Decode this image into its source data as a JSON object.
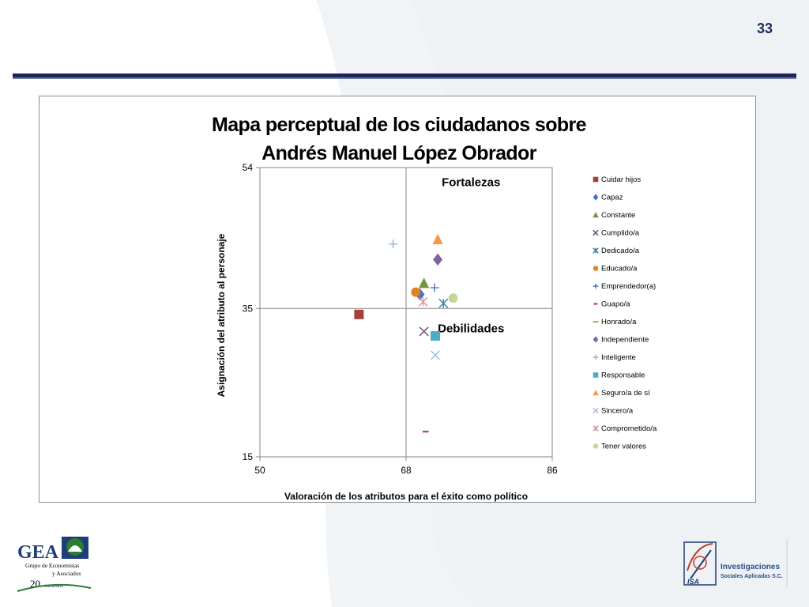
{
  "slide": {
    "number": "33"
  },
  "chart_data": {
    "type": "scatter",
    "title_line1": "Mapa perceptual de los ciudadanos sobre",
    "title_line2": "Andrés Manuel López Obrador",
    "xlabel": "Valoración de los atributos para el éxito como político",
    "ylabel": "Asignación  del atributo al personaje",
    "xlim": [
      50,
      86
    ],
    "ylim": [
      15,
      54
    ],
    "xticks": [
      "50",
      "68",
      "86"
    ],
    "yticks": [
      "15",
      "35",
      "54"
    ],
    "x_divider": 68,
    "y_divider": 35,
    "grid": false,
    "legend_position": "right",
    "annotations": [
      {
        "text": "Fortalezas",
        "x": 76,
        "y": 51.5
      },
      {
        "text": "Debilidades",
        "x": 76,
        "y": 31.8
      }
    ],
    "series": [
      {
        "name": "Cuidar hijos",
        "marker": "square",
        "color": "#a5403d",
        "x": 62.2,
        "y": 34.2
      },
      {
        "name": "Capaz",
        "marker": "diamond",
        "color": "#4472c4",
        "x": 69.7,
        "y": 36.9
      },
      {
        "name": "Constante",
        "marker": "triangle",
        "color": "#77933c",
        "x": 70.2,
        "y": 38.4
      },
      {
        "name": "Cumplido/a",
        "marker": "x",
        "color": "#604a7b",
        "x": 70.2,
        "y": 31.9
      },
      {
        "name": "Dedicado/a",
        "marker": "star",
        "color": "#31859c",
        "x": 72.6,
        "y": 35.7
      },
      {
        "name": "Educado/a",
        "marker": "circle",
        "color": "#e0822b",
        "x": 69.2,
        "y": 37.2
      },
      {
        "name": "Emprendedor(a)",
        "marker": "plus",
        "color": "#4472c4",
        "x": 71.5,
        "y": 37.8
      },
      {
        "name": "Guapo/a",
        "marker": "dash",
        "color": "#c0504d",
        "x": 70.4,
        "y": 18.4
      },
      {
        "name": "Honrado/a",
        "marker": "line",
        "color": "#9bbb59",
        "x": null,
        "y": null
      },
      {
        "name": "Independiente",
        "marker": "diamond",
        "color": "#8064a2",
        "x": 71.9,
        "y": 41.6
      },
      {
        "name": "Inteligente",
        "marker": "plus",
        "color": "#95b3d7",
        "x": 66.4,
        "y": 43.7
      },
      {
        "name": "Responsable",
        "marker": "square",
        "color": "#4bacc6",
        "x": 71.6,
        "y": 31.3
      },
      {
        "name": "Seguro/a de sí",
        "marker": "triangle",
        "color": "#f79646",
        "x": 71.9,
        "y": 44.3
      },
      {
        "name": "Sincero/a",
        "marker": "x",
        "color": "#a3b8de",
        "x": 71.6,
        "y": 28.7
      },
      {
        "name": "Comprometido/a",
        "marker": "star",
        "color": "#d99694",
        "x": 70.1,
        "y": 35.9
      },
      {
        "name": "Tener valores",
        "marker": "circle",
        "color": "#c4d79b",
        "x": 73.8,
        "y": 36.4
      }
    ]
  },
  "footer": {
    "gea_logo_text": "GEA",
    "gea_name_line1": "Grupo de Economistas",
    "gea_name_line2": "y Asociados",
    "gea_anniversary_number": "20",
    "gea_anniversary_word": "Aniversario",
    "isa_line1": "Investigaciones",
    "isa_line2": "Sociales Aplicadas S.C.",
    "isa_mark": "ISA"
  }
}
